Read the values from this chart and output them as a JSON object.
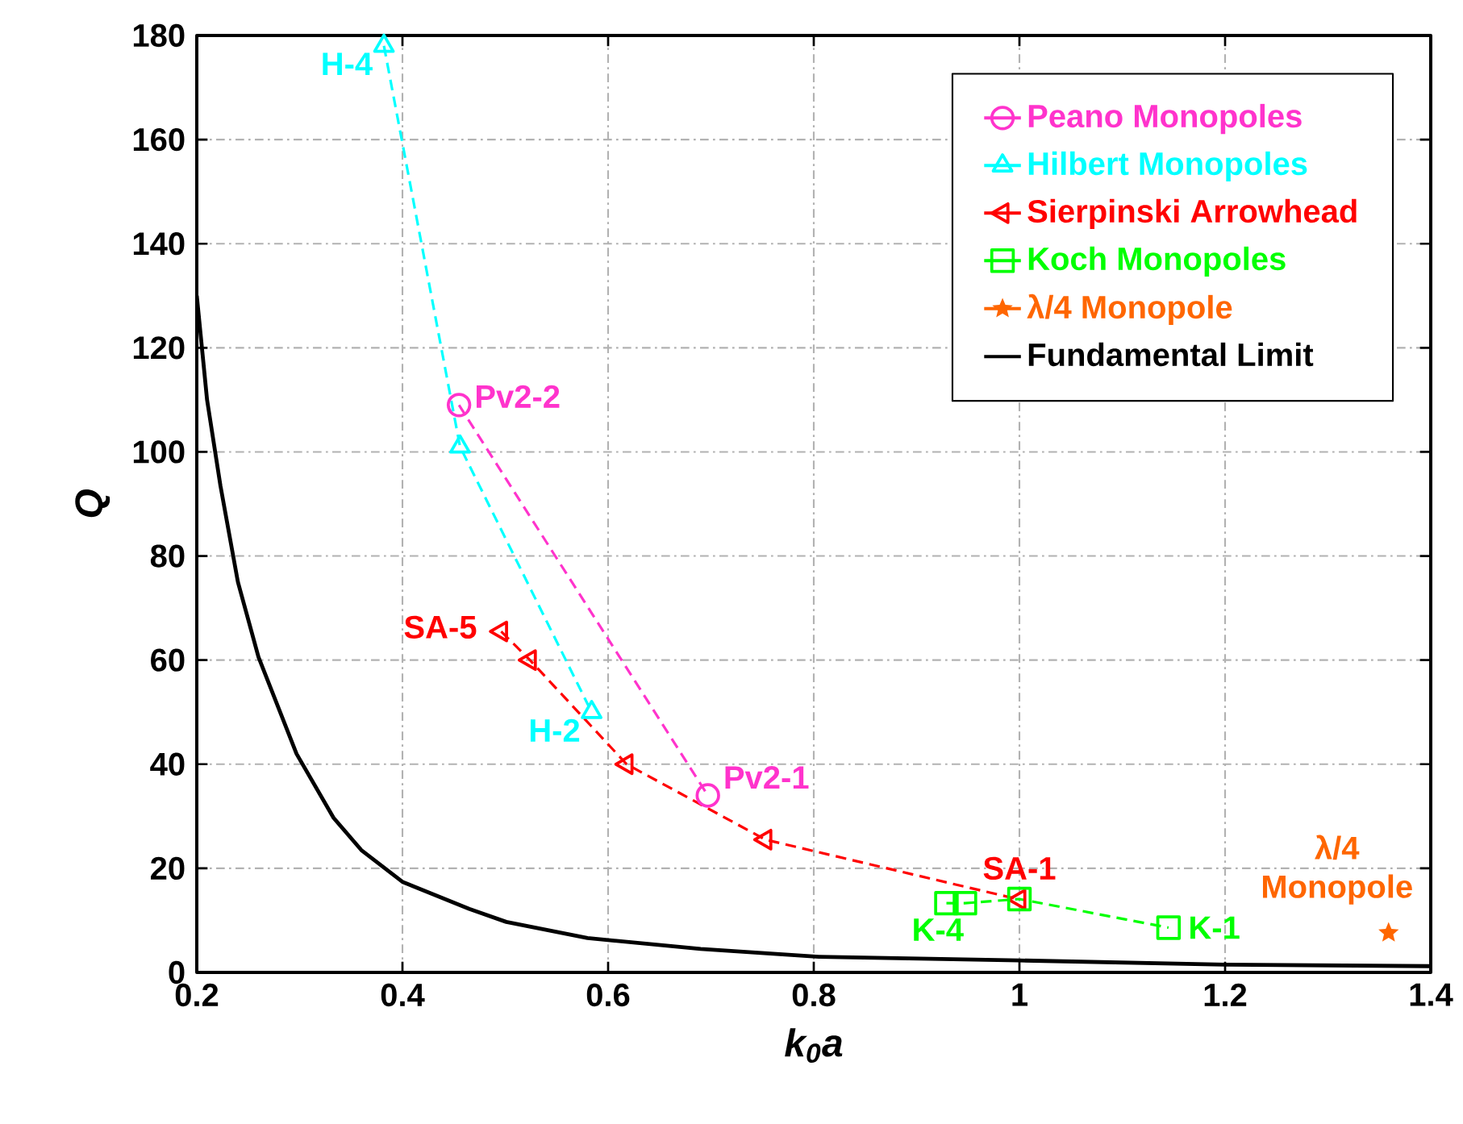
{
  "chart_data": {
    "type": "line",
    "xlabel": "k$_{0}$a",
    "ylabel": "Q",
    "xlim": [
      0.2,
      1.4
    ],
    "xticks": [
      0.2,
      0.4,
      0.6,
      0.8,
      1,
      1.2,
      1.4
    ],
    "ylim": [
      0,
      180
    ],
    "yticks": [
      0,
      20,
      40,
      60,
      80,
      100,
      120,
      140,
      160,
      180
    ],
    "grid": true,
    "legend": "top right",
    "series": [
      {
        "name": "Peano Monopoles",
        "color": "#ff33cc",
        "marker": "circle",
        "line_style": "dashed",
        "x": [
          0.455,
          0.697
        ],
        "values": [
          109,
          34
        ]
      },
      {
        "name": "Hilbert Monopoles",
        "color": "#00ffff",
        "marker": "triangle",
        "line_style": "dashed",
        "x": [
          0.382,
          0.456,
          0.584
        ],
        "values": [
          178,
          101,
          50
        ]
      },
      {
        "name": "Sierpinski Arrowhead",
        "color": "#ff0000",
        "marker": "triangle",
        "line_style": "dashed",
        "x": [
          0.496,
          0.524,
          0.618,
          0.753,
          1.0
        ],
        "values": [
          65.5,
          60,
          40,
          25.5,
          14
        ]
      },
      {
        "name": "Koch Monopoles",
        "color": "#00ff00",
        "marker": "square",
        "line_style": "dashed",
        "x": [
          0.929,
          0.947,
          1.0,
          1.145
        ],
        "values": [
          13.3,
          13.3,
          14.1,
          8.6
        ]
      },
      {
        "name": "λ/4 Monopole",
        "color": "#ff6600",
        "marker": "star",
        "line_style": "solid",
        "x": [
          1.359
        ],
        "values": [
          7.6
        ]
      },
      {
        "name": "Fundamental Limit",
        "color": "#000000",
        "marker": "none",
        "line_style": "solid",
        "x": [
          0.2,
          0.21,
          0.223,
          0.24,
          0.26,
          0.297,
          0.333,
          0.36,
          0.4,
          0.465,
          0.501,
          0.58,
          0.69,
          0.805,
          1.0,
          1.2,
          1.4
        ],
        "values": [
          130,
          110,
          93.5,
          75,
          60.6,
          42,
          29.7,
          23.5,
          17.4,
          12.2,
          9.7,
          6.6,
          4.5,
          3,
          2.3,
          1.5,
          1.2
        ]
      }
    ],
    "annotations": [
      {
        "text": "H-4",
        "x": 0.382,
        "y": 178
      },
      {
        "text": "Pv2-2",
        "x": 0.455,
        "y": 109
      },
      {
        "text": "SA-5",
        "x": 0.496,
        "y": 65.5
      },
      {
        "text": "H-2",
        "x": 0.584,
        "y": 50
      },
      {
        "text": "Pv2-1",
        "x": 0.697,
        "y": 34
      },
      {
        "text": "SA-1",
        "x": 1.0,
        "y": 14
      },
      {
        "text": "K-4",
        "x": 0.929,
        "y": 13.3
      },
      {
        "text": "K-1",
        "x": 1.145,
        "y": 8.6
      },
      {
        "text": "λ/4 Monopole",
        "x": 1.359,
        "y": 7.6
      }
    ]
  }
}
